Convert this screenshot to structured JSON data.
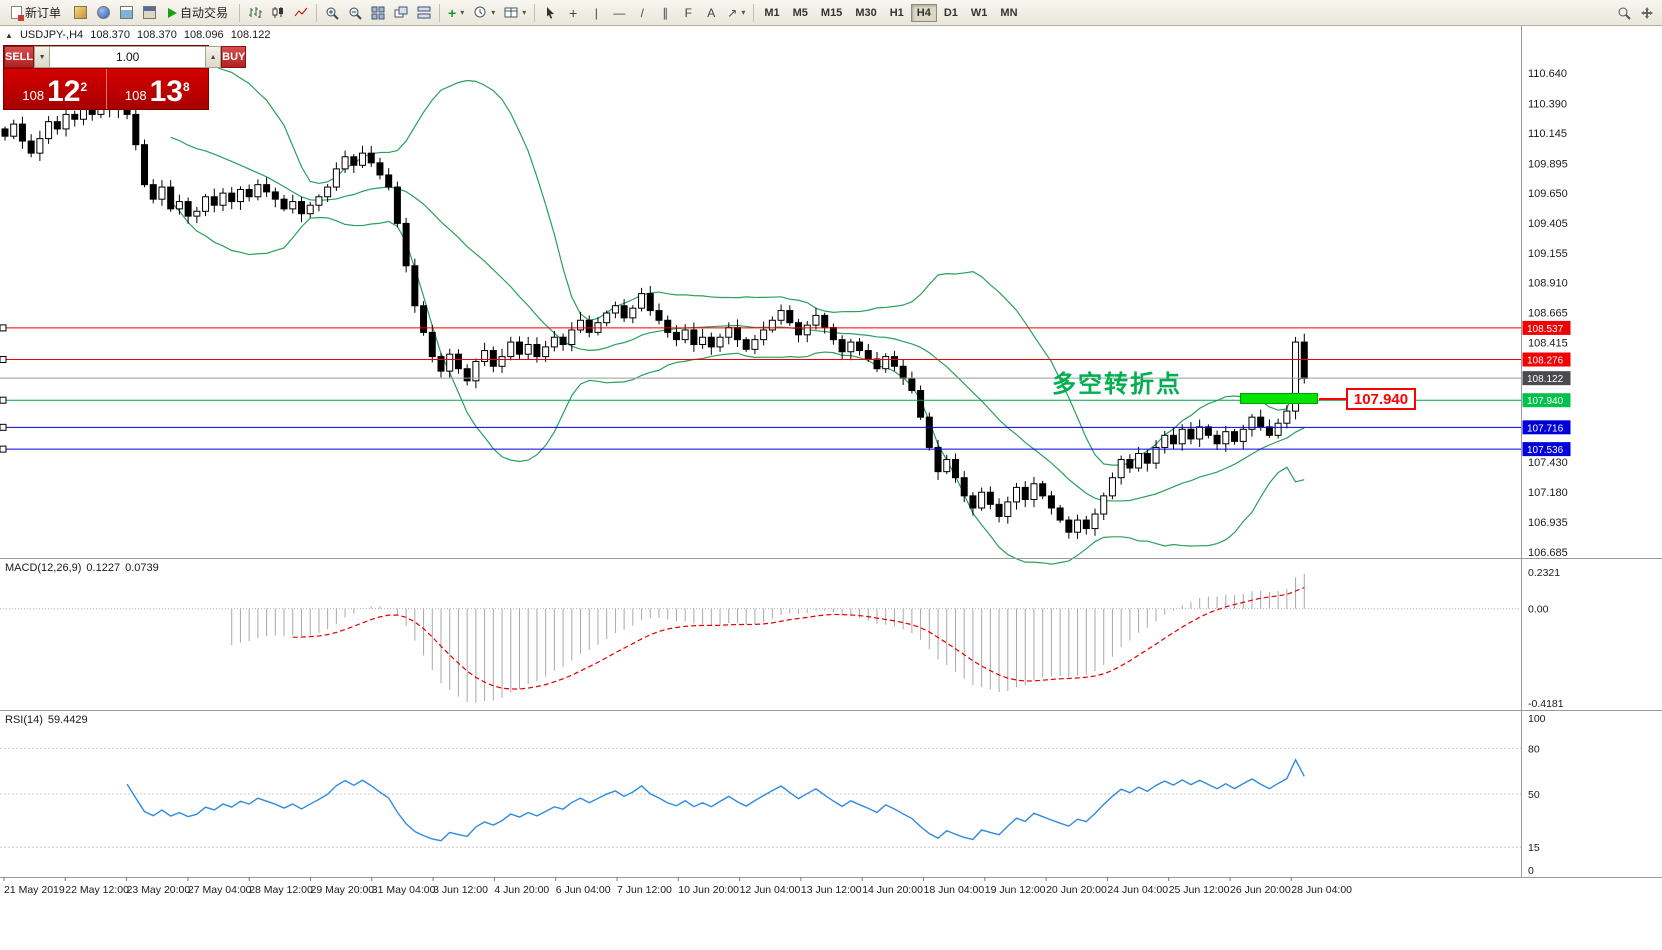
{
  "toolbar": {
    "new_order_label": "新订单",
    "autotrading_label": "自动交易",
    "timeframes": [
      "M1",
      "M5",
      "M15",
      "M30",
      "H1",
      "H4",
      "D1",
      "W1",
      "MN"
    ],
    "active_timeframe": "H4"
  },
  "icons": {
    "collapse": "▲",
    "dropdown": "▾",
    "spin_up": "▲",
    "spin_down": "▼",
    "plus": "+",
    "crosshair": "+",
    "vertical_line": "|",
    "horizontal_line": "—",
    "trendline": "/",
    "channel": "∥",
    "fibonacci": "F",
    "text_tool": "A",
    "arrows_tool": "↗"
  },
  "symbol_header": {
    "symbol": "USDJPY-,H4",
    "open": "108.370",
    "high": "108.370",
    "low": "108.096",
    "close": "108.122"
  },
  "trade_panel": {
    "sell_label": "SELL",
    "buy_label": "BUY",
    "volume": "1.00",
    "sell_small": "108",
    "sell_big": "12",
    "sell_sup": "2",
    "buy_small": "108",
    "buy_big": "13",
    "buy_sup": "8"
  },
  "annotation": {
    "text": "多空转折点",
    "color": "#00b050"
  },
  "callout": {
    "text": "107.940"
  },
  "levels": [
    {
      "label": "108.537",
      "value": 108.537,
      "line": "#f00000",
      "tag": "#f00000",
      "marker": true
    },
    {
      "label": "108.276",
      "value": 108.276,
      "line": "#f00000",
      "tag": "#f00000",
      "marker": true
    },
    {
      "label": "108.122",
      "value": 108.122,
      "line": "#9a9a9a",
      "tag": "#4a4a50",
      "marker": false
    },
    {
      "label": "107.940",
      "value": 107.94,
      "line": "#00a14b",
      "tag": "#00c24a",
      "marker": true
    },
    {
      "label": "107.716",
      "value": 107.716,
      "line": "#0000e0",
      "tag": "#0000d8",
      "marker": true
    },
    {
      "label": "107.536",
      "value": 107.536,
      "line": "#0000e0",
      "tag": "#0000d8",
      "marker": true
    }
  ],
  "price_axis": {
    "labels": [
      110.64,
      110.39,
      110.145,
      109.895,
      109.65,
      109.405,
      109.155,
      108.91,
      108.665,
      108.415,
      107.43,
      107.18,
      106.935,
      106.685
    ]
  },
  "macd_panel": {
    "title": "MACD(12,26,9)",
    "main_value": "0.1227",
    "signal_value": "0.0739",
    "scale_top": "0.2321",
    "scale_zero": "0.00",
    "scale_bottom": "-0.4181"
  },
  "rsi_panel": {
    "title": "RSI(14)",
    "value": "59.4429",
    "scale": [
      {
        "label": "100",
        "value": 100
      },
      {
        "label": "80",
        "value": 80
      },
      {
        "label": "50",
        "value": 50
      },
      {
        "label": "15",
        "value": 15
      },
      {
        "label": "0",
        "value": 0
      }
    ],
    "level_lines": [
      80,
      50,
      15
    ]
  },
  "time_axis": [
    "21 May 2019",
    "22 May 12:00",
    "23 May 20:00",
    "27 May 04:00",
    "28 May 12:00",
    "29 May 20:00",
    "31 May 04:00",
    "3 Jun 12:00",
    "4 Jun 20:00",
    "6 Jun 04:00",
    "7 Jun 12:00",
    "10 Jun 20:00",
    "12 Jun 04:00",
    "13 Jun 12:00",
    "14 Jun 20:00",
    "18 Jun 04:00",
    "19 Jun 12:00",
    "20 Jun 20:00",
    "24 Jun 04:00",
    "25 Jun 12:00",
    "26 Jun 20:00",
    "28 Jun 04:00"
  ],
  "chart_data": {
    "type": "candlestick",
    "symbol": "USDJPY",
    "timeframe": "H4",
    "last_ohlc": {
      "open": 108.37,
      "high": 108.37,
      "low": 108.096,
      "close": 108.122
    },
    "y_axis_range": [
      106.64,
      111.03
    ],
    "indicators": [
      "Bollinger Bands(20,2)",
      "MACD(12,26,9)",
      "RSI(14)"
    ],
    "horizontal_levels": [
      108.537,
      108.276,
      108.122,
      107.94,
      107.716,
      107.536
    ],
    "closes": [
      110.12,
      110.22,
      110.08,
      109.98,
      110.1,
      110.24,
      110.18,
      110.3,
      110.26,
      110.36,
      110.3,
      110.4,
      110.34,
      110.44,
      110.3,
      110.05,
      109.72,
      109.6,
      109.7,
      109.52,
      109.58,
      109.46,
      109.5,
      109.62,
      109.55,
      109.65,
      109.58,
      109.68,
      109.62,
      109.72,
      109.66,
      109.6,
      109.52,
      109.58,
      109.48,
      109.55,
      109.62,
      109.7,
      109.85,
      109.95,
      109.88,
      109.98,
      109.9,
      109.8,
      109.7,
      109.4,
      109.05,
      108.72,
      108.5,
      108.3,
      108.18,
      108.32,
      108.2,
      108.1,
      108.26,
      108.35,
      108.22,
      108.3,
      108.42,
      108.32,
      108.4,
      108.3,
      108.38,
      108.46,
      108.4,
      108.52,
      108.6,
      108.5,
      108.58,
      108.66,
      108.72,
      108.62,
      108.7,
      108.82,
      108.68,
      108.6,
      108.5,
      108.44,
      108.52,
      108.4,
      108.46,
      108.38,
      108.46,
      108.54,
      108.44,
      108.36,
      108.44,
      108.52,
      108.6,
      108.68,
      108.58,
      108.48,
      108.56,
      108.64,
      108.54,
      108.44,
      108.34,
      108.42,
      108.35,
      108.28,
      108.2,
      108.3,
      108.22,
      108.12,
      108.02,
      107.8,
      107.55,
      107.35,
      107.45,
      107.3,
      107.15,
      107.05,
      107.18,
      107.08,
      106.98,
      107.1,
      107.22,
      107.12,
      107.25,
      107.15,
      107.05,
      106.95,
      106.85,
      106.95,
      106.88,
      107.0,
      107.15,
      107.3,
      107.45,
      107.38,
      107.5,
      107.42,
      107.55,
      107.65,
      107.58,
      107.7,
      107.62,
      107.72,
      107.65,
      107.58,
      107.68,
      107.6,
      107.7,
      107.8,
      107.72,
      107.65,
      107.75,
      107.85,
      108.42,
      108.12
    ]
  }
}
